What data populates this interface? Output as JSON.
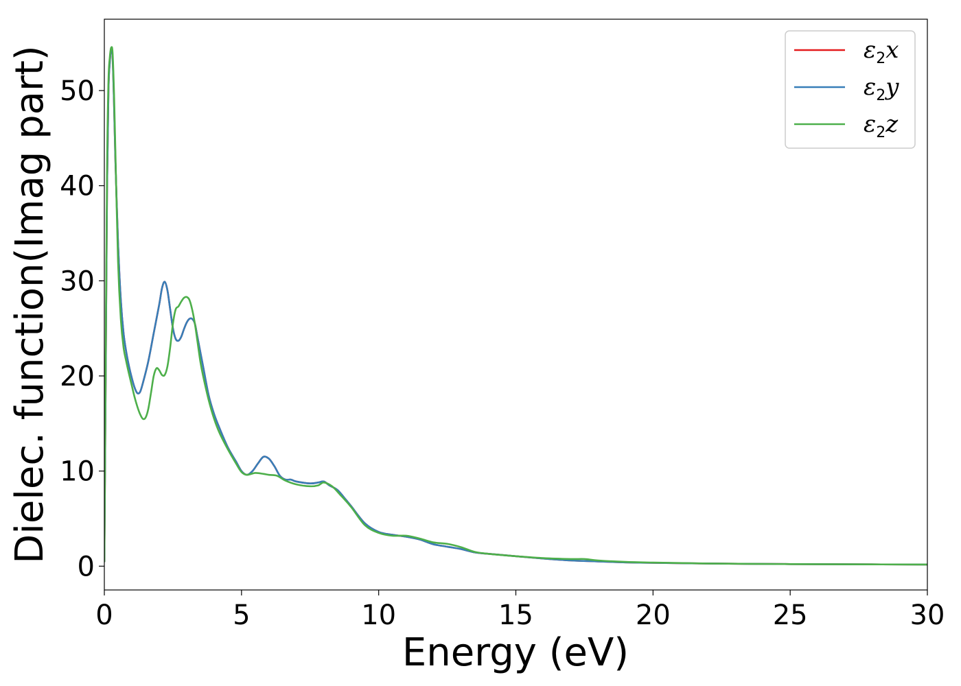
{
  "chart_data": {
    "type": "line",
    "title": "",
    "xlabel": "Energy (eV)",
    "ylabel": "Dielec. function(Imag part)",
    "xlim": [
      0,
      30
    ],
    "ylim": [
      -2.5,
      57.5
    ],
    "xticks": [
      0,
      5,
      10,
      15,
      20,
      25,
      30
    ],
    "yticks": [
      0,
      10,
      20,
      30,
      40,
      50
    ],
    "grid": false,
    "legend_position": "top-right",
    "colors": {
      "x": "#e41a1c",
      "y": "#377eb8",
      "z": "#4daf4a"
    },
    "series": [
      {
        "name": "ε2x",
        "legend_base": "ε",
        "legend_sub": "2",
        "legend_var": "x",
        "color": "#e41a1c",
        "x": [
          0,
          0.05,
          0.1,
          0.15,
          0.2,
          0.25,
          0.3,
          0.35,
          0.4,
          0.5,
          0.6,
          0.7,
          0.8,
          0.9,
          1.0,
          1.1,
          1.2,
          1.3,
          1.4,
          1.6,
          1.8,
          2.0,
          2.1,
          2.2,
          2.3,
          2.4,
          2.5,
          2.6,
          2.7,
          2.8,
          2.9,
          3.0,
          3.1,
          3.2,
          3.3,
          3.4,
          3.6,
          3.8,
          4.0,
          4.2,
          4.5,
          4.8,
          5.0,
          5.2,
          5.4,
          5.6,
          5.8,
          6.0,
          6.2,
          6.4,
          6.6,
          6.8,
          7.0,
          7.5,
          7.8,
          8.0,
          8.2,
          8.5,
          8.8,
          9.0,
          9.5,
          10.0,
          10.5,
          11.0,
          11.5,
          12.0,
          12.5,
          13.0,
          13.5,
          14.0,
          15.0,
          16.0,
          17.0,
          18.0,
          19.0,
          20.0,
          22.0,
          25.0,
          27.0,
          30.0
        ],
        "y": [
          0.5,
          20,
          40,
          50,
          53,
          54.5,
          53.5,
          49,
          43,
          34,
          28,
          24.5,
          22.5,
          21,
          19.8,
          18.8,
          18.2,
          18.3,
          19.2,
          21.5,
          24.5,
          27.5,
          29.2,
          29.9,
          29,
          27,
          25,
          23.9,
          23.7,
          24.1,
          24.9,
          25.6,
          26,
          26,
          25.5,
          24,
          21,
          18,
          16,
          14.5,
          12.5,
          11,
          10,
          9.6,
          10,
          10.8,
          11.5,
          11.3,
          10.5,
          9.5,
          9.1,
          9.1,
          8.9,
          8.7,
          8.8,
          8.9,
          8.5,
          8.0,
          7.0,
          6.3,
          4.5,
          3.6,
          3.3,
          3.1,
          2.8,
          2.3,
          2.05,
          1.8,
          1.45,
          1.3,
          1.05,
          0.8,
          0.6,
          0.5,
          0.4,
          0.35,
          0.28,
          0.22,
          0.2,
          0.17
        ]
      },
      {
        "name": "ε2y",
        "legend_base": "ε",
        "legend_sub": "2",
        "legend_var": "y",
        "color": "#377eb8",
        "x": [
          0,
          0.05,
          0.1,
          0.15,
          0.2,
          0.25,
          0.3,
          0.35,
          0.4,
          0.5,
          0.6,
          0.7,
          0.8,
          0.9,
          1.0,
          1.1,
          1.2,
          1.3,
          1.4,
          1.6,
          1.8,
          2.0,
          2.1,
          2.2,
          2.3,
          2.4,
          2.5,
          2.6,
          2.7,
          2.8,
          2.9,
          3.0,
          3.1,
          3.2,
          3.3,
          3.4,
          3.6,
          3.8,
          4.0,
          4.2,
          4.5,
          4.8,
          5.0,
          5.2,
          5.4,
          5.6,
          5.8,
          6.0,
          6.2,
          6.4,
          6.6,
          6.8,
          7.0,
          7.5,
          7.8,
          8.0,
          8.2,
          8.5,
          8.8,
          9.0,
          9.5,
          10.0,
          10.5,
          11.0,
          11.5,
          12.0,
          12.5,
          13.0,
          13.5,
          14.0,
          15.0,
          16.0,
          17.0,
          18.0,
          19.0,
          20.0,
          22.0,
          25.0,
          27.0,
          30.0
        ],
        "y": [
          0.5,
          20,
          40,
          50,
          53,
          54.5,
          53.5,
          49,
          43,
          34,
          28,
          24.5,
          22.5,
          21,
          19.8,
          18.8,
          18.2,
          18.3,
          19.2,
          21.5,
          24.5,
          27.5,
          29.2,
          29.9,
          29,
          27,
          25,
          23.9,
          23.7,
          24.1,
          24.9,
          25.6,
          26,
          26,
          25.5,
          24,
          21,
          18,
          16,
          14.5,
          12.5,
          11,
          10,
          9.6,
          10,
          10.8,
          11.5,
          11.3,
          10.5,
          9.5,
          9.1,
          9.1,
          8.9,
          8.7,
          8.8,
          8.9,
          8.5,
          8.0,
          7.0,
          6.3,
          4.5,
          3.6,
          3.3,
          3.1,
          2.8,
          2.3,
          2.05,
          1.8,
          1.45,
          1.3,
          1.05,
          0.8,
          0.6,
          0.5,
          0.4,
          0.35,
          0.28,
          0.22,
          0.2,
          0.17
        ]
      },
      {
        "name": "ε2z",
        "legend_base": "ε",
        "legend_sub": "2",
        "legend_var": "z",
        "color": "#4daf4a",
        "x": [
          0,
          0.05,
          0.1,
          0.15,
          0.2,
          0.25,
          0.3,
          0.35,
          0.4,
          0.5,
          0.6,
          0.7,
          0.8,
          0.9,
          1.0,
          1.1,
          1.2,
          1.3,
          1.4,
          1.5,
          1.6,
          1.7,
          1.8,
          1.9,
          2.0,
          2.1,
          2.2,
          2.3,
          2.4,
          2.5,
          2.6,
          2.7,
          2.8,
          2.9,
          3.0,
          3.1,
          3.2,
          3.3,
          3.4,
          3.5,
          3.6,
          3.8,
          4.0,
          4.2,
          4.5,
          4.8,
          5.0,
          5.2,
          5.5,
          5.8,
          6.0,
          6.3,
          6.6,
          7.0,
          7.5,
          7.8,
          8.0,
          8.3,
          8.6,
          9.0,
          9.5,
          10.0,
          10.5,
          11.0,
          11.5,
          12.0,
          12.5,
          13.0,
          13.5,
          14.0,
          15.0,
          16.0,
          17.0,
          17.5,
          18.0,
          19.0,
          20.0,
          22.0,
          25.0,
          27.0,
          30.0
        ],
        "y": [
          0.5,
          22,
          42,
          51,
          53.5,
          54.5,
          54,
          50,
          44,
          32,
          26,
          23,
          21.5,
          20.2,
          19,
          17.8,
          16.8,
          16,
          15.5,
          15.6,
          16.5,
          18.2,
          20,
          20.8,
          20.6,
          20.1,
          20.1,
          21,
          23,
          25.5,
          27,
          27.3,
          27.8,
          28.2,
          28.3,
          28,
          27,
          25.5,
          23.5,
          21.5,
          20,
          17.5,
          15.5,
          14,
          12.3,
          10.8,
          9.9,
          9.6,
          9.8,
          9.7,
          9.6,
          9.5,
          9.0,
          8.6,
          8.4,
          8.5,
          8.8,
          8.4,
          7.5,
          6.2,
          4.3,
          3.5,
          3.2,
          3.2,
          2.9,
          2.5,
          2.35,
          2.0,
          1.5,
          1.3,
          1.05,
          0.85,
          0.75,
          0.75,
          0.6,
          0.45,
          0.38,
          0.28,
          0.22,
          0.2,
          0.17
        ]
      }
    ]
  }
}
